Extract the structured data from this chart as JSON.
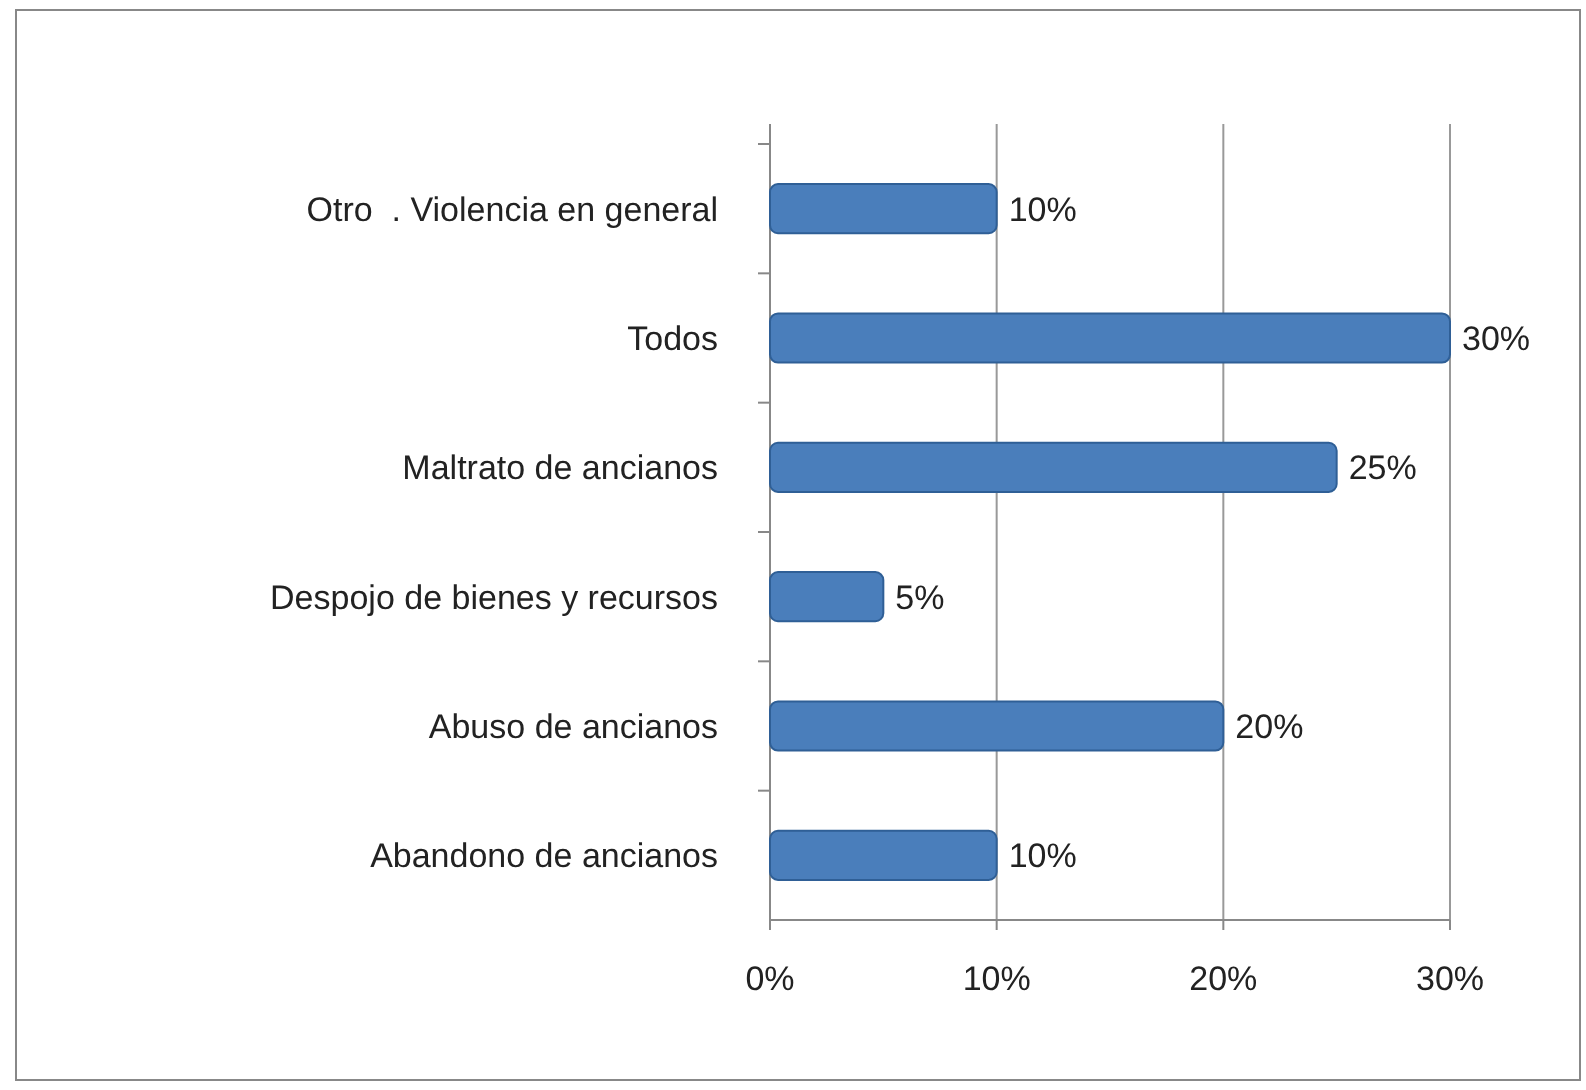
{
  "chart_data": {
    "type": "bar",
    "orientation": "horizontal",
    "categories": [
      "Otro  . Violencia en general",
      "Todos",
      "Maltrato de ancianos",
      "Despojo de bienes y recursos",
      "Abuso de ancianos",
      "Abandono de ancianos"
    ],
    "values": [
      10,
      30,
      25,
      5,
      20,
      10
    ],
    "color": "#4a7ebb",
    "xlim": [
      0,
      30
    ],
    "xticks": [
      {
        "value": 0,
        "label": "0%"
      },
      {
        "value": 10,
        "label": "10%"
      },
      {
        "value": 20,
        "label": "20%"
      },
      {
        "value": 30,
        "label": "30%"
      }
    ],
    "grid": "x",
    "data_labels": true,
    "value_labels": [
      "10%",
      "30%",
      "25%",
      "5%",
      "20%",
      "10%"
    ]
  }
}
